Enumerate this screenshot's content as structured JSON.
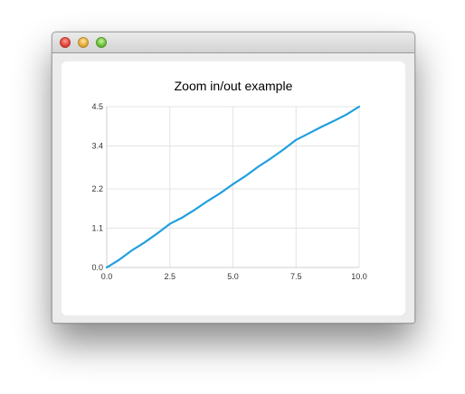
{
  "window": {
    "controls": [
      {
        "name": "close",
        "icon": "close-icon"
      },
      {
        "name": "minimize",
        "icon": "minimize-icon"
      },
      {
        "name": "zoom",
        "icon": "zoom-icon"
      }
    ]
  },
  "chart_data": {
    "type": "line",
    "title": "Zoom in/out example",
    "xlabel": "",
    "ylabel": "",
    "xlim": [
      0.0,
      10.0
    ],
    "ylim": [
      0.0,
      4.5
    ],
    "x_ticks": [
      "0.0",
      "2.5",
      "5.0",
      "7.5",
      "10.0"
    ],
    "y_ticks": [
      "0.0",
      "1.1",
      "2.2",
      "3.4",
      "4.5"
    ],
    "grid": true,
    "series_color": "#209fdf",
    "series": [
      {
        "x": [
          0.0,
          0.5,
          1.0,
          1.5,
          2.0,
          2.5,
          3.0,
          3.5,
          4.0,
          4.5,
          5.0,
          5.5,
          6.0,
          6.5,
          7.0,
          7.5,
          8.0,
          8.5,
          9.0,
          9.5,
          10.0
        ],
        "values": [
          0.0,
          0.22,
          0.48,
          0.7,
          0.95,
          1.22,
          1.4,
          1.62,
          1.86,
          2.08,
          2.33,
          2.56,
          2.82,
          3.05,
          3.3,
          3.57,
          3.75,
          3.93,
          4.1,
          4.28,
          4.5
        ]
      }
    ]
  }
}
